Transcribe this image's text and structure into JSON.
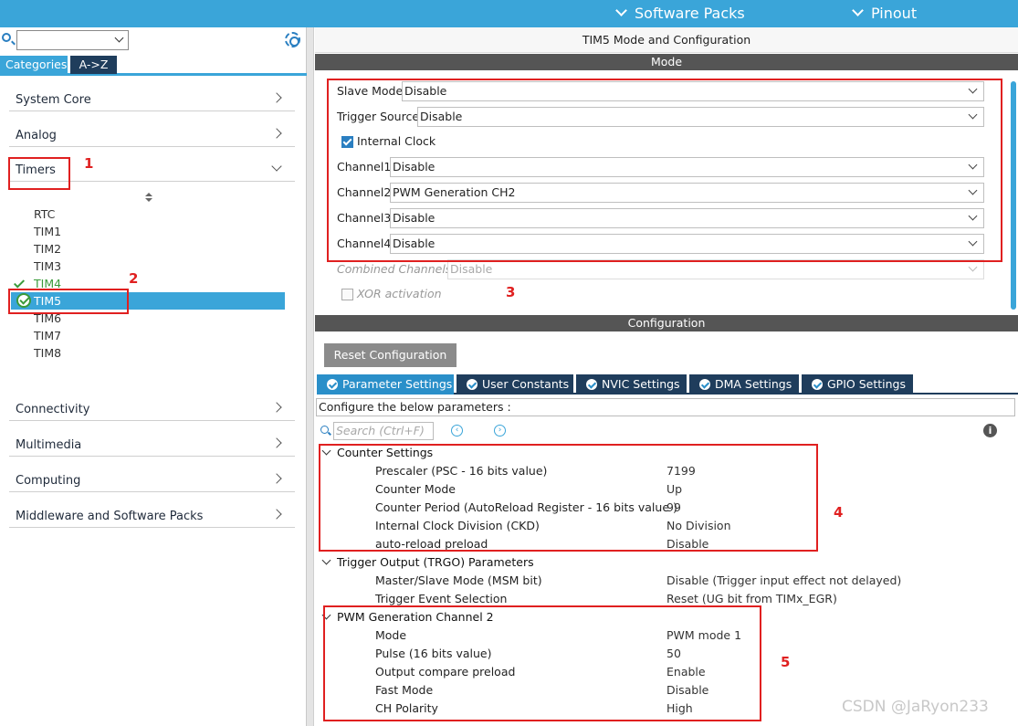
{
  "topbar": {
    "software_packs": "Software Packs",
    "pinout": "Pinout",
    "accent_color": "#3aa5d9"
  },
  "left": {
    "search_icon": "search-icon",
    "settings_icon": "gear-icon",
    "tabs": [
      "Categories",
      "A->Z"
    ],
    "categories": [
      {
        "label": "System Core",
        "expanded": false
      },
      {
        "label": "Analog",
        "expanded": false
      },
      {
        "label": "Timers",
        "expanded": true
      },
      {
        "label": "Connectivity",
        "expanded": false
      },
      {
        "label": "Multimedia",
        "expanded": false
      },
      {
        "label": "Computing",
        "expanded": false
      },
      {
        "label": "Middleware and Software Packs",
        "expanded": false
      }
    ],
    "timers": [
      "RTC",
      "TIM1",
      "TIM2",
      "TIM3",
      "TIM4",
      "TIM5",
      "TIM6",
      "TIM7",
      "TIM8"
    ],
    "selected_timer": "TIM5"
  },
  "annotations": [
    "1",
    "2",
    "3",
    "4",
    "5"
  ],
  "right": {
    "title": "TIM5 Mode and Configuration",
    "mode_header": "Mode",
    "mode": {
      "slave_mode": {
        "label": "Slave Mode",
        "value": "Disable"
      },
      "trigger_source": {
        "label": "Trigger Source",
        "value": "Disable"
      },
      "internal_clock": {
        "label": "Internal Clock",
        "checked": true
      },
      "channel1": {
        "label": "Channel1",
        "value": "Disable"
      },
      "channel2": {
        "label": "Channel2",
        "value": "PWM Generation CH2"
      },
      "channel3": {
        "label": "Channel3",
        "value": "Disable"
      },
      "channel4": {
        "label": "Channel4",
        "value": "Disable"
      },
      "combined_channels": {
        "label": "Combined Channels",
        "value": "Disable"
      },
      "xor_activation": {
        "label": "XOR activation",
        "checked": false
      }
    },
    "config_header": "Configuration",
    "reset_button": "Reset Configuration",
    "config_tabs": [
      "Parameter Settings",
      "User Constants",
      "NVIC Settings",
      "DMA Settings",
      "GPIO Settings"
    ],
    "hint": "Configure the below parameters :",
    "search_placeholder": "Search (Ctrl+F)",
    "groups": [
      {
        "name": "Counter Settings",
        "params": [
          {
            "name": "Prescaler (PSC - 16 bits value)",
            "value": "7199"
          },
          {
            "name": "Counter Mode",
            "value": "Up"
          },
          {
            "name": "Counter Period (AutoReload Register - 16 bits value )",
            "value": "99"
          },
          {
            "name": "Internal Clock Division (CKD)",
            "value": "No Division"
          },
          {
            "name": "auto-reload preload",
            "value": "Disable"
          }
        ]
      },
      {
        "name": "Trigger Output (TRGO) Parameters",
        "params": [
          {
            "name": "Master/Slave Mode (MSM bit)",
            "value": "Disable (Trigger input effect not delayed)"
          },
          {
            "name": "Trigger Event Selection",
            "value": "Reset (UG bit from TIMx_EGR)"
          }
        ]
      },
      {
        "name": "PWM Generation Channel 2",
        "params": [
          {
            "name": "Mode",
            "value": "PWM mode 1"
          },
          {
            "name": "Pulse (16 bits value)",
            "value": "50"
          },
          {
            "name": "Output compare preload",
            "value": "Enable"
          },
          {
            "name": "Fast Mode",
            "value": "Disable"
          },
          {
            "name": "CH Polarity",
            "value": "High"
          }
        ]
      }
    ]
  },
  "watermark": "CSDN @JaRyon233"
}
